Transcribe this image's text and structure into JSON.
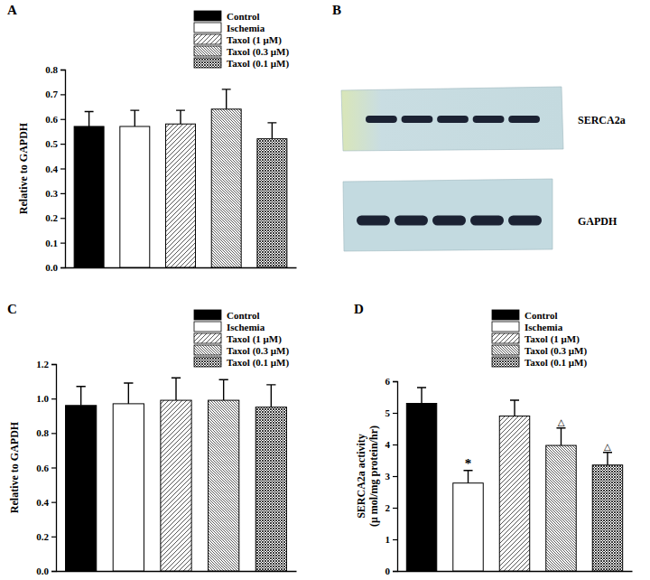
{
  "chart_data": [
    {
      "type": "bar",
      "title": "A",
      "y_label": "Relative to GAPDH",
      "categories": [
        "Control",
        "Ischemia",
        "Taxol (1 μM)",
        "Taxol (0.3 μM)",
        "Taxol (0.1 μM)"
      ],
      "values": [
        0.57,
        0.57,
        0.58,
        0.64,
        0.52
      ],
      "errors": [
        0.06,
        0.065,
        0.055,
        0.08,
        0.065
      ],
      "colors": [
        "#000000",
        "#ffffff",
        "#ffffff",
        "#ffffff",
        "#ffffff"
      ],
      "ylim": [
        0,
        0.8
      ],
      "yticks": [
        {
          "value": 0,
          "label": "0.0"
        },
        0.1,
        0.2,
        0.3,
        0.4,
        0.5,
        0.6,
        0.7,
        0.8
      ],
      "legend": "top",
      "tick_labels": "y"
    },
    {
      "type": "bar",
      "title": "C",
      "y_label": "Relative to GAPDH",
      "categories": [
        "Control",
        "Ischemia",
        "Taxol (1 μM)",
        "Taxol (0.3 μM)",
        "Taxol (0.1 μM)"
      ],
      "values": [
        0.96,
        0.97,
        0.99,
        0.99,
        0.95
      ],
      "errors": [
        0.11,
        0.12,
        0.13,
        0.12,
        0.13
      ],
      "colors": [
        "#000000",
        "#ffffff",
        "#ffffff",
        "#ffffff",
        "#ffffff"
      ],
      "ylim": [
        0,
        1.2
      ],
      "yticks": [
        {
          "value": 0,
          "label": "0.0"
        },
        0.2,
        0.4,
        0.6,
        0.8,
        {
          "value": 1,
          "label": "1.0"
        },
        1.2
      ],
      "legend": "top",
      "tick_labels": "y"
    },
    {
      "type": "bar",
      "title": "D",
      "y_label": [
        "SERCA2a activity",
        "(μ mol/mg protein/hr)"
      ],
      "categories": [
        "Control",
        "Ischemia",
        "Taxol (1 μM)",
        "Taxol (0.3 μM)",
        "Taxol (0.1 μM)"
      ],
      "values": [
        5.3,
        2.78,
        4.9,
        3.97,
        3.35
      ],
      "errors": [
        0.5,
        0.4,
        0.5,
        0.55,
        0.4
      ],
      "annotations": [
        null,
        "*",
        null,
        "△",
        "△"
      ],
      "colors": [
        "#000000",
        "#ffffff",
        "#ffffff",
        "#ffffff",
        "#ffffff"
      ],
      "ylim": [
        0,
        6
      ],
      "yticks": [
        0,
        1,
        2,
        3,
        4,
        5,
        6
      ],
      "legend": "top",
      "tick_labels": "y"
    }
  ],
  "blot": {
    "title": "B",
    "lanes": 5,
    "rows": [
      "SERCA2a",
      "GAPDH"
    ]
  }
}
